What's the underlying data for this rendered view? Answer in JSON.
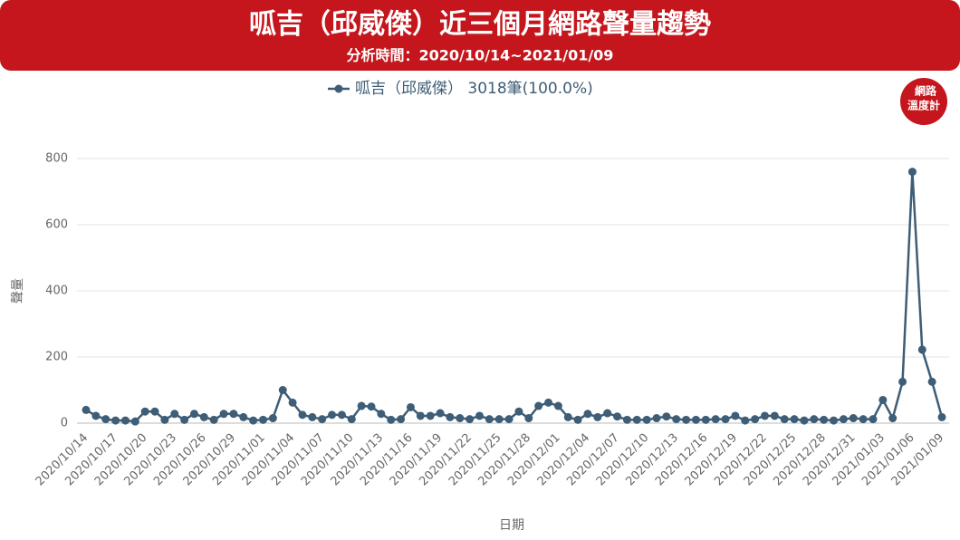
{
  "chart_data": {
    "type": "line",
    "title": "呱吉（邱威傑）近三個月網路聲量趨勢",
    "subtitle": "分析時間：2020/10/14~2021/01/09",
    "logo": [
      "網路",
      "溫度計"
    ],
    "y_label": "聲量",
    "x_label": "日期",
    "categories": [
      "2020/10/14",
      null,
      null,
      "2020/10/17",
      null,
      null,
      "2020/10/20",
      null,
      null,
      "2020/10/23",
      null,
      null,
      "2020/10/26",
      null,
      null,
      "2020/10/29",
      null,
      null,
      "2020/11/01",
      null,
      null,
      "2020/11/04",
      null,
      null,
      "2020/11/07",
      null,
      null,
      "2020/11/10",
      null,
      null,
      "2020/11/13",
      null,
      null,
      "2020/11/16",
      null,
      null,
      "2020/11/19",
      null,
      null,
      "2020/11/22",
      null,
      null,
      "2020/11/25",
      null,
      null,
      "2020/11/28",
      null,
      null,
      "2020/12/01",
      null,
      null,
      "2020/12/04",
      null,
      null,
      "2020/12/07",
      null,
      null,
      "2020/12/10",
      null,
      null,
      "2020/12/13",
      null,
      null,
      "2020/12/16",
      null,
      null,
      "2020/12/19",
      null,
      null,
      "2020/12/22",
      null,
      null,
      "2020/12/25",
      null,
      null,
      "2020/12/28",
      null,
      null,
      "2020/12/31",
      null,
      null,
      "2021/01/03",
      null,
      null,
      "2021/01/06",
      null,
      null,
      "2021/01/09"
    ],
    "series": [
      {
        "name": "呱吉（邱威傑） 3018筆(100.0%)",
        "color": "#3e5d76",
        "values": [
          40,
          22,
          12,
          8,
          8,
          5,
          35,
          35,
          10,
          28,
          10,
          28,
          18,
          10,
          28,
          28,
          18,
          8,
          10,
          15,
          100,
          62,
          25,
          18,
          12,
          25,
          25,
          12,
          52,
          50,
          28,
          10,
          12,
          48,
          22,
          22,
          30,
          18,
          15,
          12,
          22,
          12,
          12,
          12,
          35,
          15,
          52,
          62,
          52,
          18,
          10,
          28,
          18,
          30,
          20,
          10,
          10,
          10,
          15,
          20,
          12,
          10,
          10,
          10,
          12,
          12,
          22,
          8,
          12,
          22,
          22,
          12,
          12,
          8,
          12,
          10,
          8,
          12,
          15,
          12,
          12,
          70,
          15,
          125,
          760,
          222,
          125,
          18
        ]
      }
    ],
    "ylim": [
      0,
      800
    ],
    "yticks": [
      0,
      200,
      400,
      600,
      800
    ],
    "grid": true
  }
}
